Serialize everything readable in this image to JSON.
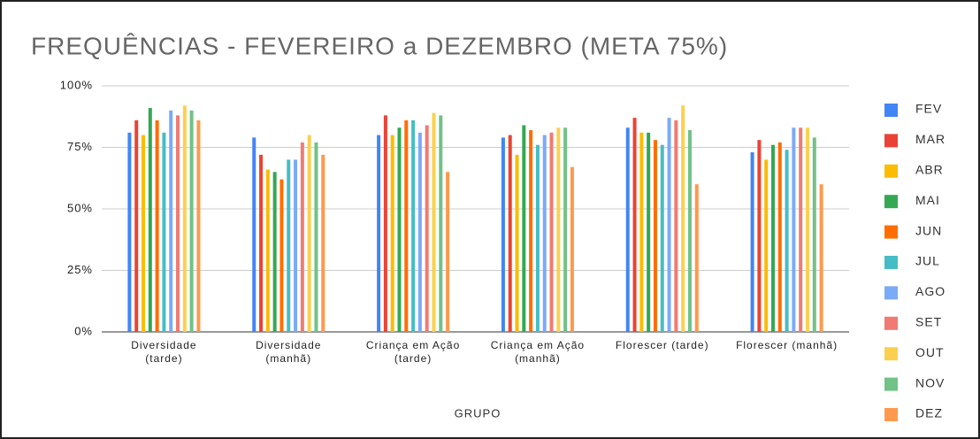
{
  "chart_data": {
    "type": "bar",
    "title": "FREQUÊNCIAS - FEVEREIRO a DEZEMBRO (META 75%)",
    "x_label": "GRUPO",
    "categories": [
      "Diversidade (tarde)",
      "Diversidade (manhã)",
      "Criança em Ação (tarde)",
      "Criança em Ação (manhã)",
      "Florescer (tarde)",
      "Florescer (manhã)"
    ],
    "series": [
      {
        "name": "FEV",
        "color": "#4285f4",
        "values": [
          81,
          79,
          80,
          79,
          83,
          73
        ]
      },
      {
        "name": "MAR",
        "color": "#ea4335",
        "values": [
          86,
          72,
          88,
          80,
          87,
          78
        ]
      },
      {
        "name": "ABR",
        "color": "#fbbc04",
        "values": [
          80,
          66,
          80,
          72,
          81,
          70
        ]
      },
      {
        "name": "MAI",
        "color": "#34a853",
        "values": [
          91,
          65,
          83,
          84,
          81,
          76
        ]
      },
      {
        "name": "JUN",
        "color": "#ff6d01",
        "values": [
          86,
          62,
          86,
          82,
          78,
          77
        ]
      },
      {
        "name": "JUL",
        "color": "#46bdc6",
        "values": [
          81,
          70,
          86,
          76,
          76,
          74
        ]
      },
      {
        "name": "AGO",
        "color": "#7baaf7",
        "values": [
          90,
          70,
          81,
          80,
          87,
          83
        ]
      },
      {
        "name": "SET",
        "color": "#f07b72",
        "values": [
          88,
          77,
          84,
          81,
          86,
          83
        ]
      },
      {
        "name": "OUT",
        "color": "#fcd04f",
        "values": [
          92,
          80,
          89,
          83,
          92,
          83
        ]
      },
      {
        "name": "NOV",
        "color": "#71c287",
        "values": [
          90,
          77,
          88,
          83,
          82,
          79
        ]
      },
      {
        "name": "DEZ",
        "color": "#ff994d",
        "values": [
          86,
          72,
          65,
          67,
          60,
          60
        ]
      }
    ],
    "ylim": [
      0,
      100
    ],
    "yticks": [
      {
        "value": 0,
        "label": "0%"
      },
      {
        "value": 25,
        "label": "25%"
      },
      {
        "value": 50,
        "label": "50%"
      },
      {
        "value": 75,
        "label": "75%"
      },
      {
        "value": 100,
        "label": "100%"
      }
    ],
    "grid": true,
    "legend": "right"
  }
}
